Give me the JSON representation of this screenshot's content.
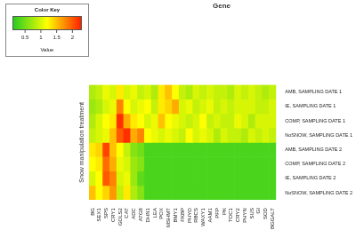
{
  "chart_data": {
    "type": "heatmap",
    "title": "Gene",
    "y_label": "Snow manipulation treatment",
    "columns": [
      "BG",
      "SEX1",
      "SPS",
      "CRY1",
      "GOLS2",
      "CAT",
      "ADC",
      "ATG8",
      "DHN1",
      "LEA",
      "POX",
      "MSHMT",
      "BMY1",
      "FKBP",
      "PHYO",
      "RBCS",
      "WAXY1",
      "AAM1",
      "PFP",
      "PK",
      "TOC1",
      "CRY2",
      "PHYN",
      "SUS",
      "GI",
      "SOD",
      "BGGALT"
    ],
    "rows": [
      "AMB, SAMPLING DATE 1",
      "IE, SAMPLING DATE 1",
      "COMP, SAMPLING DATE 1",
      "NoSNOW, SAMPLING DATE 1",
      "AMB, SAMPLING DATE 2",
      "COMP, SAMPLING DATE 2",
      "IE, SAMPLING DATE 2",
      "NoSNOW, SAMPLING DATE 2"
    ],
    "cells": [
      [
        0.8,
        0.9,
        1.1,
        1.0,
        1.3,
        1.0,
        1.1,
        0.9,
        1.0,
        0.8,
        1.3,
        1.5,
        1.2,
        0.9,
        0.8,
        1.0,
        0.9,
        1.0,
        0.9,
        0.9,
        0.8,
        1.0,
        0.9,
        1.0,
        0.9,
        0.8,
        0.9
      ],
      [
        0.7,
        0.8,
        1.0,
        1.1,
        1.8,
        1.2,
        1.0,
        1.1,
        1.2,
        0.9,
        1.3,
        1.4,
        1.6,
        1.0,
        1.1,
        0.9,
        1.0,
        1.1,
        0.9,
        1.0,
        0.9,
        1.0,
        1.0,
        1.0,
        0.9,
        0.9,
        1.0
      ],
      [
        0.8,
        1.0,
        1.2,
        1.3,
        2.2,
        1.6,
        1.3,
        1.2,
        1.0,
        1.1,
        1.5,
        1.2,
        1.1,
        1.0,
        0.9,
        1.0,
        1.2,
        0.9,
        1.0,
        0.9,
        0.9,
        1.1,
        1.0,
        0.8,
        1.0,
        1.0,
        1.0
      ],
      [
        0.9,
        1.0,
        1.1,
        1.5,
        2.0,
        2.2,
        1.6,
        1.8,
        1.2,
        1.1,
        1.0,
        1.1,
        1.0,
        0.9,
        1.2,
        1.0,
        1.1,
        1.0,
        0.8,
        1.0,
        0.9,
        0.9,
        0.8,
        1.0,
        0.9,
        1.0,
        0.9
      ],
      [
        1.3,
        1.4,
        2.1,
        1.5,
        1.2,
        0.9,
        0.6,
        0.5,
        0.3,
        0.3,
        0.3,
        0.3,
        0.3,
        0.3,
        0.3,
        0.3,
        0.3,
        0.3,
        0.3,
        0.3,
        0.3,
        0.3,
        0.3,
        0.3,
        0.3,
        0.3,
        0.3
      ],
      [
        1.2,
        1.3,
        1.9,
        1.6,
        1.1,
        1.0,
        0.7,
        0.6,
        0.3,
        0.3,
        0.3,
        0.3,
        0.3,
        0.3,
        0.3,
        0.3,
        0.3,
        0.3,
        0.3,
        0.3,
        0.3,
        0.3,
        0.3,
        0.3,
        0.3,
        0.3,
        0.3
      ],
      [
        1.0,
        1.2,
        2.0,
        1.8,
        1.0,
        1.1,
        0.7,
        0.4,
        0.3,
        0.3,
        0.3,
        0.3,
        0.3,
        0.3,
        0.3,
        0.3,
        0.3,
        0.3,
        0.3,
        0.3,
        0.3,
        0.3,
        0.3,
        0.3,
        0.3,
        0.3,
        0.3
      ],
      [
        1.5,
        1.2,
        1.4,
        1.7,
        0.9,
        1.3,
        0.8,
        0.6,
        0.3,
        0.3,
        0.3,
        0.3,
        0.3,
        0.3,
        0.3,
        0.3,
        0.3,
        0.3,
        0.3,
        0.3,
        0.3,
        0.3,
        0.3,
        0.3,
        0.3,
        0.3,
        0.3
      ]
    ],
    "colorbar": {
      "title": "Color Key",
      "label": "Value",
      "range": [
        0.1,
        2.3
      ],
      "ticks": [
        0.5,
        1,
        1.5,
        2
      ],
      "colors": [
        "#22cc22",
        "#ffff00",
        "#ff1a00"
      ]
    },
    "grid": false,
    "legend": false
  }
}
